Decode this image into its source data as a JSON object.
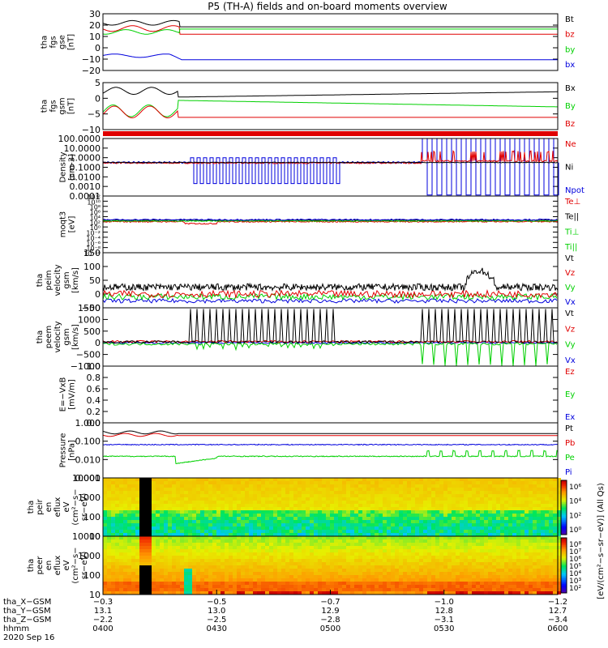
{
  "title": "P5 (TH-A) fields and on-board moments overview",
  "colors": {
    "black": "#000000",
    "red": "#e00000",
    "green": "#00d000",
    "blue": "#0000dd"
  },
  "panels": [
    {
      "id": "fgs-gse",
      "ylabel": [
        "tha",
        "fgs",
        "gse",
        "[nT]"
      ],
      "ticks": [
        "30",
        "20",
        "10",
        "0",
        "−10",
        "−20"
      ],
      "legend": [
        {
          "t": "Bt",
          "c": "black"
        },
        {
          "t": "bz",
          "c": "red"
        },
        {
          "t": "by",
          "c": "green"
        },
        {
          "t": "bx",
          "c": "blue"
        }
      ]
    },
    {
      "id": "fgs-gsm",
      "ylabel": [
        "tha",
        "fgs",
        "gsm",
        "[nT]"
      ],
      "ticks": [
        "5",
        "0",
        "−5",
        "−10"
      ],
      "legend": [
        {
          "t": "Bx",
          "c": "black"
        },
        {
          "t": "By",
          "c": "green"
        },
        {
          "t": "Bz",
          "c": "red"
        }
      ]
    },
    {
      "id": "density",
      "ylabel": [
        "Density",
        "[cm-3]"
      ],
      "ticks": [
        "100.0000",
        "10.0000",
        "1.0000",
        "0.1000",
        "0.0100",
        "0.0010",
        "0.0001"
      ],
      "legend": [
        {
          "t": "Ne",
          "c": "red"
        },
        {
          "t": "Ni",
          "c": "black"
        },
        {
          "t": "Npot",
          "c": "blue"
        }
      ]
    },
    {
      "id": "temperature",
      "ylabel": [
        "moqt3",
        "[eV]"
      ],
      "ticks": [
        "10¹²",
        "10¹⁰",
        "10⁸",
        "10⁶",
        "10⁴",
        "10²",
        "10⁰",
        "10⁻²",
        "10⁻⁴",
        "10⁻⁶",
        "10⁻⁸",
        "10⁻¹⁰"
      ],
      "legend": [
        {
          "t": "Te⊥",
          "c": "red"
        },
        {
          "t": "Te||",
          "c": "black"
        },
        {
          "t": "Ti⊥",
          "c": "green"
        },
        {
          "t": "Ti||",
          "c": "green"
        }
      ]
    },
    {
      "id": "peim-velocity",
      "ylabel": [
        "tha",
        "peim",
        "velocity",
        "gsm",
        "[km/s]"
      ],
      "ticks": [
        "150",
        "100",
        "50",
        "0",
        "−50"
      ],
      "legend": [
        {
          "t": "Vt",
          "c": "black"
        },
        {
          "t": "Vz",
          "c": "red"
        },
        {
          "t": "Vy",
          "c": "green"
        },
        {
          "t": "Vx",
          "c": "blue"
        }
      ]
    },
    {
      "id": "peem-velocity",
      "ylabel": [
        "tha",
        "peem",
        "velocity",
        "gsm",
        "[km/s]"
      ],
      "ticks": [
        "1500",
        "1000",
        "500",
        "0",
        "−500",
        "−1000"
      ],
      "legend": [
        {
          "t": "Vt",
          "c": "black"
        },
        {
          "t": "Vz",
          "c": "red"
        },
        {
          "t": "Vy",
          "c": "green"
        },
        {
          "t": "Vx",
          "c": "blue"
        }
      ]
    },
    {
      "id": "efield",
      "ylabel": [
        "E=−VxB",
        "[mV/m]"
      ],
      "ticks": [
        "1.0",
        "0.8",
        "0.6",
        "0.4",
        "0.2",
        "0.0"
      ],
      "legend": [
        {
          "t": "Ez",
          "c": "red"
        },
        {
          "t": "Ey",
          "c": "green"
        },
        {
          "t": "Ex",
          "c": "blue"
        }
      ]
    },
    {
      "id": "pressure",
      "ylabel": [
        "Pressure",
        "[nPa]"
      ],
      "ticks": [
        "1.000",
        "0.100",
        "0.010",
        "0.001"
      ],
      "legend": [
        {
          "t": "Pt",
          "c": "black"
        },
        {
          "t": "Pb",
          "c": "red"
        },
        {
          "t": "Pe",
          "c": "green"
        },
        {
          "t": "Pi",
          "c": "blue"
        }
      ]
    },
    {
      "id": "peir-spec",
      "ylabel": [
        "tha",
        "peir",
        "en",
        "eflux",
        "eV",
        "(cm²−s−",
        "sr−eV)"
      ],
      "ticks": [
        "10000",
        "1000",
        "100",
        "10"
      ],
      "legend": []
    },
    {
      "id": "peer-spec",
      "ylabel": [
        "tha",
        "peer",
        "en",
        "eflux",
        "eV",
        "(cm²−s−",
        "sr−eV)"
      ],
      "ticks": [
        "10000",
        "1000",
        "100",
        "10"
      ],
      "legend": []
    }
  ],
  "colorbar": {
    "label": "[eV/(cm²−s−sr−eV)] (All Qs)",
    "ticks1": [
      "10⁶",
      "10⁴",
      "10²",
      "10⁰"
    ],
    "ticks2": [
      "10⁸",
      "10⁷",
      "10⁶",
      "10⁵",
      "10⁴",
      "10³",
      "10²"
    ]
  },
  "xaxis": {
    "rows": [
      {
        "label": "tha_X−GSM",
        "values": [
          "−0.3",
          "−0.5",
          "−0.7",
          "−1.0",
          "−1.2"
        ]
      },
      {
        "label": "tha_Y−GSM",
        "values": [
          "13.1",
          "13.0",
          "12.9",
          "12.8",
          "12.7"
        ]
      },
      {
        "label": "tha_Z−GSM",
        "values": [
          "−2.2",
          "−2.5",
          "−2.8",
          "−3.1",
          "−3.4"
        ]
      },
      {
        "label": "hhmm",
        "values": [
          "0400",
          "0430",
          "0500",
          "0530",
          "0600"
        ]
      }
    ],
    "date": "2020 Sep 16"
  },
  "chart_data": {
    "type": "line",
    "title": "P5 (TH-A) fields and on-board moments overview",
    "x": [
      "0400",
      "0430",
      "0500",
      "0530",
      "0600"
    ],
    "xlabel": "hhmm",
    "date": "2020 Sep 16",
    "series": [
      {
        "name": "Bt",
        "panel": "fgs-gse",
        "values": [
          22,
          22,
          18,
          18,
          18
        ]
      },
      {
        "name": "bz",
        "panel": "fgs-gse",
        "values": [
          18,
          12,
          12,
          12,
          12
        ]
      },
      {
        "name": "by",
        "panel": "fgs-gse",
        "values": [
          15,
          17,
          17,
          17,
          17
        ]
      },
      {
        "name": "bx",
        "panel": "fgs-gse",
        "values": [
          -7,
          -10,
          -10,
          -10,
          -10
        ]
      },
      {
        "name": "Bx",
        "panel": "fgs-gsm",
        "values": [
          3,
          1,
          2,
          3,
          3.5
        ]
      },
      {
        "name": "By",
        "panel": "fgs-gsm",
        "values": [
          -5,
          -0.5,
          -1.5,
          -3,
          -4
        ]
      },
      {
        "name": "Bz",
        "panel": "fgs-gsm",
        "values": [
          -5,
          -8,
          -8,
          -8,
          -8
        ]
      },
      {
        "name": "Pt",
        "panel": "pressure",
        "values": [
          0.3,
          0.25,
          0.25,
          0.25,
          0.25
        ]
      },
      {
        "name": "Pb",
        "panel": "pressure",
        "values": [
          0.22,
          0.2,
          0.2,
          0.2,
          0.2
        ]
      },
      {
        "name": "Pi",
        "panel": "pressure",
        "values": [
          0.07,
          0.06,
          0.07,
          0.06,
          0.06
        ]
      },
      {
        "name": "Pe",
        "panel": "pressure",
        "values": [
          0.015,
          0.006,
          0.012,
          0.012,
          0.012
        ]
      }
    ]
  }
}
